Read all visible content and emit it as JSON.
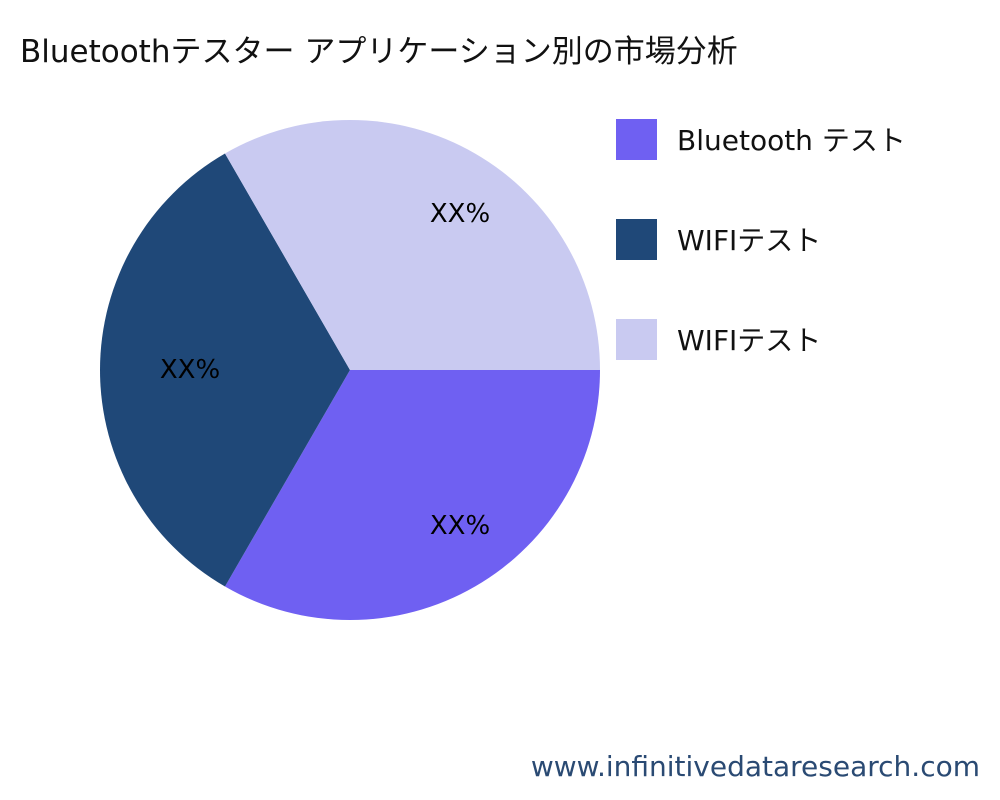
{
  "chart_data": {
    "type": "pie",
    "title": "Bluetoothテスター アプリケーション別の市場分析",
    "categories": [
      "Bluetooth テスト",
      "WIFIテスト",
      "WIFIテスト"
    ],
    "values": [
      33.3,
      33.3,
      33.3
    ],
    "data_labels": [
      "XX%",
      "XX%",
      "XX%"
    ],
    "colors": [
      "#6f60f2",
      "#1f4878",
      "#c9caf1"
    ],
    "legend_position": "right",
    "start_angle": "east, clockwise"
  },
  "footer": "www.infinitivedataresearch.com"
}
